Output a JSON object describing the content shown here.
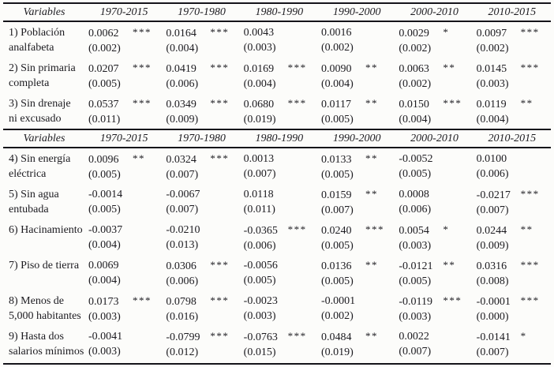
{
  "table": {
    "colors": {
      "text": "#1c1b20",
      "rule": "#15141a",
      "background": "#fcfcfa"
    },
    "header": {
      "variables": "Variables",
      "periods": [
        "1970-2015",
        "1970-1980",
        "1980-1990",
        "1990-2000",
        "2000-2010",
        "2010-2015"
      ]
    },
    "sections": [
      {
        "rows": [
          {
            "label1": "1) Población",
            "label2": "analfabeta",
            "cells": [
              {
                "coef": "0.0062",
                "stars": "***",
                "se": "(0.002)"
              },
              {
                "coef": "0.0164",
                "stars": "***",
                "se": "(0.004)"
              },
              {
                "coef": "0.0043",
                "stars": "",
                "se": "(0.003)"
              },
              {
                "coef": "0.0016",
                "stars": "",
                "se": "(0.002)"
              },
              {
                "coef": "0.0029",
                "stars": "*",
                "se": "(0.002)"
              },
              {
                "coef": "0.0097",
                "stars": "***",
                "se": "(0.002)"
              }
            ]
          },
          {
            "label1": "2) Sin primaria",
            "label2": "completa",
            "cells": [
              {
                "coef": "0.0207",
                "stars": "***",
                "se": "(0.005)"
              },
              {
                "coef": "0.0419",
                "stars": "***",
                "se": "(0.006)"
              },
              {
                "coef": "0.0169",
                "stars": "***",
                "se": "(0.004)"
              },
              {
                "coef": "0.0090",
                "stars": "**",
                "se": "(0.004)"
              },
              {
                "coef": "0.0063",
                "stars": "**",
                "se": "(0.002)"
              },
              {
                "coef": "0.0145",
                "stars": "***",
                "se": "(0.003)"
              }
            ]
          },
          {
            "label1": "3) Sin drenaje",
            "label2": "ni excusado",
            "cells": [
              {
                "coef": "0.0537",
                "stars": "***",
                "se": "(0.011)"
              },
              {
                "coef": "0.0349",
                "stars": "***",
                "se": "(0.009)"
              },
              {
                "coef": "0.0680",
                "stars": "***",
                "se": "(0.019)"
              },
              {
                "coef": "0.0117",
                "stars": "**",
                "se": "(0.005)"
              },
              {
                "coef": "0.0150",
                "stars": "***",
                "se": "(0.004)"
              },
              {
                "coef": "0.0119",
                "stars": "**",
                "se": "(0.004)"
              }
            ]
          }
        ]
      },
      {
        "rows": [
          {
            "label1": "4) Sin energía",
            "label2": "eléctrica",
            "cells": [
              {
                "coef": "0.0096",
                "stars": "**",
                "se": "(0.005)"
              },
              {
                "coef": "0.0324",
                "stars": "***",
                "se": "(0.007)"
              },
              {
                "coef": "0.0013",
                "stars": "",
                "se": "(0.007)"
              },
              {
                "coef": "0.0133",
                "stars": "**",
                "se": "(0.005)"
              },
              {
                "coef": "-0.0052",
                "stars": "",
                "se": "(0.005)"
              },
              {
                "coef": "0.0100",
                "stars": "",
                "se": "(0.006)"
              }
            ]
          },
          {
            "label1": "5) Sin agua",
            "label2": "entubada",
            "cells": [
              {
                "coef": "-0.0014",
                "stars": "",
                "se": "(0.005)"
              },
              {
                "coef": "-0.0067",
                "stars": "",
                "se": "(0.007)"
              },
              {
                "coef": "0.0118",
                "stars": "",
                "se": "(0.011)"
              },
              {
                "coef": "0.0159",
                "stars": "**",
                "se": "(0.007)"
              },
              {
                "coef": "0.0008",
                "stars": "",
                "se": "(0.006)"
              },
              {
                "coef": "-0.0217",
                "stars": "***",
                "se": "(0.007)"
              }
            ]
          },
          {
            "label1": "6) Hacinamiento",
            "label2": "",
            "cells": [
              {
                "coef": "-0.0037",
                "stars": "",
                "se": "(0.004)"
              },
              {
                "coef": "-0.0210",
                "stars": "",
                "se": "(0.013)"
              },
              {
                "coef": "-0.0365",
                "stars": "***",
                "se": "(0.006)"
              },
              {
                "coef": "0.0240",
                "stars": "***",
                "se": "(0.005)"
              },
              {
                "coef": "0.0054",
                "stars": "*",
                "se": "(0.003)"
              },
              {
                "coef": "0.0244",
                "stars": "**",
                "se": "(0.009)"
              }
            ]
          },
          {
            "label1": "7) Piso de tierra",
            "label2": "",
            "cells": [
              {
                "coef": "0.0069",
                "stars": "",
                "se": "(0.004)"
              },
              {
                "coef": "0.0306",
                "stars": "***",
                "se": "(0.006)"
              },
              {
                "coef": "-0.0056",
                "stars": "",
                "se": "(0.005)"
              },
              {
                "coef": "0.0136",
                "stars": "**",
                "se": "(0.005)"
              },
              {
                "coef": "-0.0121",
                "stars": "**",
                "se": "(0.005)"
              },
              {
                "coef": "0.0316",
                "stars": "***",
                "se": "(0.008)"
              }
            ]
          },
          {
            "label1": "8) Menos de",
            "label2": "5,000 habitantes",
            "cells": [
              {
                "coef": "0.0173",
                "stars": "***",
                "se": "(0.003)"
              },
              {
                "coef": "0.0798",
                "stars": "***",
                "se": "(0.016)"
              },
              {
                "coef": "-0.0023",
                "stars": "",
                "se": "(0.003)"
              },
              {
                "coef": "-0.0001",
                "stars": "",
                "se": "(0.002)"
              },
              {
                "coef": "-0.0119",
                "stars": "***",
                "se": "(0.003)"
              },
              {
                "coef": "-0.0001",
                "stars": "***",
                "se": "(0.000)"
              }
            ]
          },
          {
            "label1": "9) Hasta dos",
            "label2": "salarios mínimos",
            "cells": [
              {
                "coef": "-0.0041",
                "stars": "",
                "se": "(0.003)"
              },
              {
                "coef": "-0.0799",
                "stars": "***",
                "se": "(0.012)"
              },
              {
                "coef": "-0.0763",
                "stars": "***",
                "se": "(0.015)"
              },
              {
                "coef": "0.0484",
                "stars": "**",
                "se": "(0.019)"
              },
              {
                "coef": "0.0022",
                "stars": "",
                "se": "(0.007)"
              },
              {
                "coef": "-0.0141",
                "stars": "*",
                "se": "(0.007)"
              }
            ]
          }
        ]
      }
    ]
  }
}
